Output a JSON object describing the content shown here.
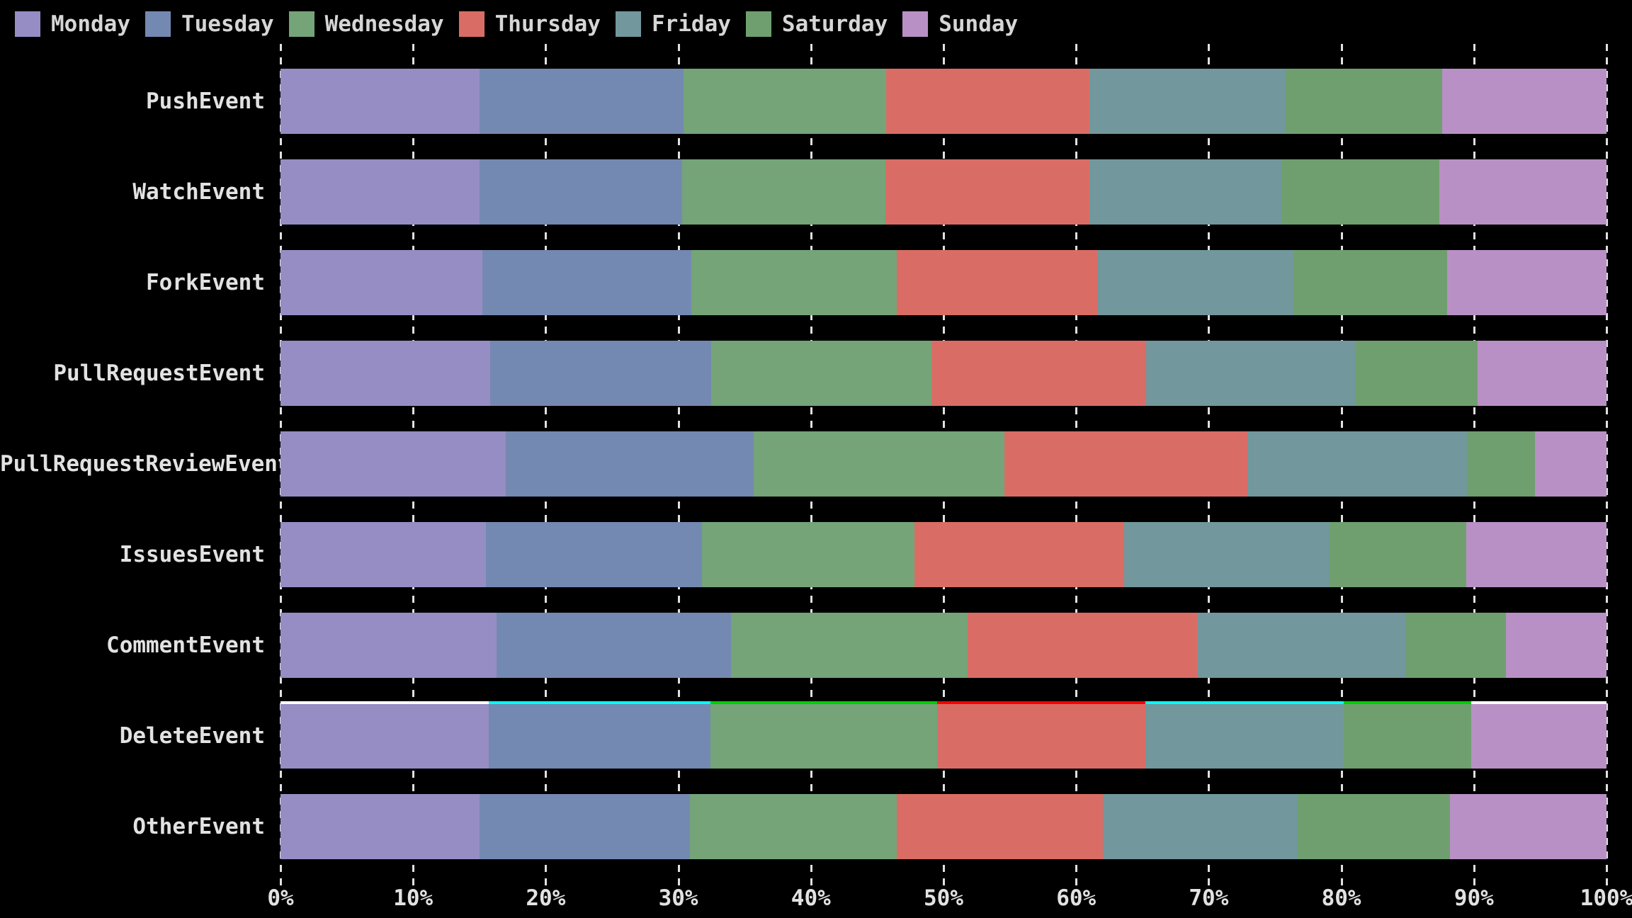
{
  "background": "#000000",
  "legend": {
    "items": [
      {
        "label": "Monday",
        "color": "#968dc4"
      },
      {
        "label": "Tuesday",
        "color": "#7489b1"
      },
      {
        "label": "Wednesday",
        "color": "#74a478"
      },
      {
        "label": "Thursday",
        "color": "#d96d66"
      },
      {
        "label": "Friday",
        "color": "#72979c"
      },
      {
        "label": "Saturday",
        "color": "#6f9f6f"
      },
      {
        "label": "Sunday",
        "color": "#b990c5"
      }
    ]
  },
  "chart_data": {
    "type": "bar",
    "orientation": "horizontal",
    "stacked": true,
    "normalized": "percent",
    "title": "",
    "xlabel": "",
    "ylabel": "",
    "xlim": [
      0,
      100
    ],
    "x_tick_labels": [
      "0%",
      "10%",
      "20%",
      "30%",
      "40%",
      "50%",
      "60%",
      "70%",
      "80%",
      "90%",
      "100%"
    ],
    "grid": "vertical-dashed-white",
    "legend_position": "top-left",
    "categories": [
      "PushEvent",
      "WatchEvent",
      "ForkEvent",
      "PullRequestEvent",
      "PullRequestReviewEvent",
      "IssuesEvent",
      "CommentEvent",
      "DeleteEvent",
      "OtherEvent"
    ],
    "series": [
      {
        "name": "Monday",
        "color": "#968dc4",
        "values": [
          15.0,
          15.0,
          15.2,
          15.8,
          17.0,
          15.5,
          16.3,
          15.7,
          15.0
        ]
      },
      {
        "name": "Tuesday",
        "color": "#7489b1",
        "values": [
          15.4,
          15.3,
          15.8,
          16.7,
          18.7,
          16.3,
          17.7,
          16.7,
          15.9
        ]
      },
      {
        "name": "Wednesday",
        "color": "#74a478",
        "values": [
          15.3,
          15.3,
          15.5,
          16.6,
          18.9,
          16.0,
          17.8,
          17.1,
          15.6
        ]
      },
      {
        "name": "Thursday",
        "color": "#d96d66",
        "values": [
          15.3,
          15.4,
          15.1,
          16.2,
          18.3,
          15.8,
          17.3,
          15.7,
          15.5
        ]
      },
      {
        "name": "Friday",
        "color": "#72979c",
        "values": [
          14.8,
          14.5,
          14.8,
          15.8,
          16.6,
          15.5,
          15.8,
          15.0,
          14.7
        ]
      },
      {
        "name": "Saturday",
        "color": "#6f9f6f",
        "values": [
          11.8,
          11.9,
          11.6,
          9.2,
          5.1,
          10.3,
          7.5,
          9.6,
          11.5
        ]
      },
      {
        "name": "Sunday",
        "color": "#b990c5",
        "values": [
          12.4,
          12.6,
          12.0,
          9.7,
          5.4,
          10.6,
          7.6,
          10.2,
          11.8
        ]
      }
    ],
    "highlight": {
      "category": "DeleteEvent",
      "edge_colors": [
        "#ffffff",
        "#00ffff",
        "#00d000",
        "#ff0000",
        "#00ffff",
        "#00d000",
        "#ffffff"
      ]
    }
  }
}
